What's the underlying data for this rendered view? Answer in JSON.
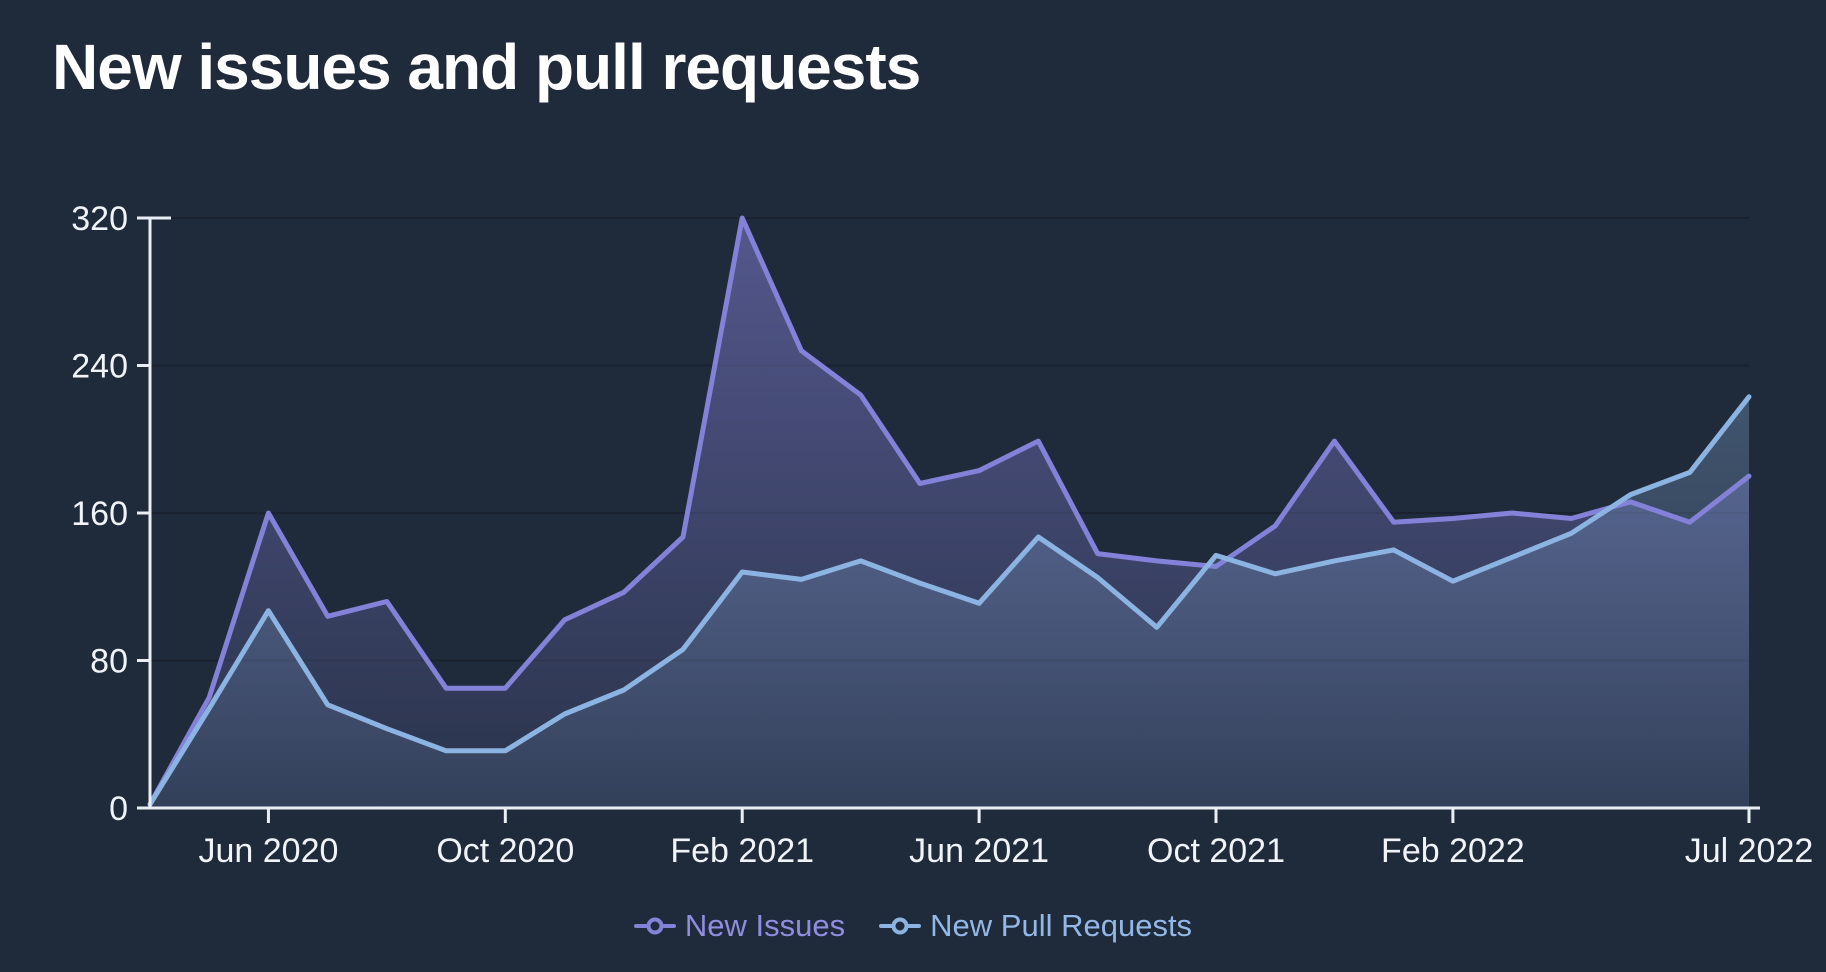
{
  "title": "New issues and pull requests",
  "colors": {
    "background": "#1f2a3a",
    "grid": "#19222e",
    "axis": "#e9eef5",
    "tick_text": "#f0f4f9",
    "issues_line": "#8481d8",
    "prs_line": "#8cb4e2",
    "legend_issues_text": "#908ce0",
    "legend_prs_text": "#93b7e6"
  },
  "chart_data": {
    "type": "area",
    "x": [
      "Apr 2020",
      "May 2020",
      "Jun 2020",
      "Jul 2020",
      "Aug 2020",
      "Sep 2020",
      "Oct 2020",
      "Nov 2020",
      "Dec 2020",
      "Jan 2021",
      "Feb 2021",
      "Mar 2021",
      "Apr 2021",
      "May 2021",
      "Jun 2021",
      "Jul 2021",
      "Aug 2021",
      "Sep 2021",
      "Oct 2021",
      "Nov 2021",
      "Dec 2021",
      "Jan 2022",
      "Feb 2022",
      "Mar 2022",
      "Apr 2022",
      "May 2022",
      "Jun 2022",
      "Jul 2022"
    ],
    "series": [
      {
        "name": "New Issues",
        "color": "#8481d8",
        "values": [
          2,
          60,
          160,
          104,
          112,
          65,
          65,
          102,
          117,
          147,
          320,
          248,
          224,
          176,
          183,
          199,
          138,
          134,
          131,
          153,
          199,
          155,
          157,
          160,
          157,
          166,
          155,
          180
        ]
      },
      {
        "name": "New Pull Requests",
        "color": "#8cb4e2",
        "values": [
          2,
          54,
          107,
          56,
          43,
          31,
          31,
          51,
          64,
          86,
          128,
          124,
          134,
          122,
          111,
          147,
          125,
          98,
          137,
          127,
          134,
          140,
          123,
          136,
          149,
          170,
          182,
          223
        ]
      }
    ],
    "xticks": [
      {
        "index": 2,
        "label": "Jun 2020"
      },
      {
        "index": 6,
        "label": "Oct 2020"
      },
      {
        "index": 10,
        "label": "Feb 2021"
      },
      {
        "index": 14,
        "label": "Jun 2021"
      },
      {
        "index": 18,
        "label": "Oct 2021"
      },
      {
        "index": 22,
        "label": "Feb 2022"
      },
      {
        "index": 27,
        "label": "Jul 2022"
      }
    ],
    "yticks": [
      0,
      80,
      160,
      240,
      320
    ],
    "ylim": [
      0,
      320
    ],
    "grid": true,
    "legend_position": "bottom"
  }
}
